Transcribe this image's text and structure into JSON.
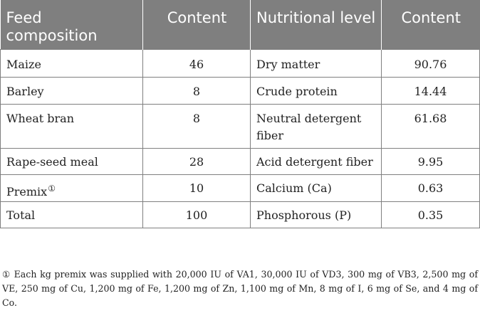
{
  "table": {
    "headers": [
      "Feed composition",
      "Content",
      "Nutritional level",
      "Content"
    ],
    "rows": [
      [
        "Maize",
        "46",
        "Dry matter",
        "90.76"
      ],
      [
        "Barley",
        "8",
        "Crude protein",
        "14.44"
      ],
      [
        "Wheat bran",
        "8",
        "Neutral detergent fiber",
        "61.68"
      ],
      [
        "Rape-seed meal",
        "28",
        "Acid detergent fiber",
        "9.95"
      ],
      [
        "Premix",
        "10",
        "Calcium (Ca)",
        "0.63"
      ],
      [
        "Total",
        "100",
        "Phosphorous (P)",
        "0.35"
      ]
    ],
    "premix_marker": "①",
    "header_bg": "#7f7f7f"
  },
  "footnote": "① Each kg premix was supplied with 20,000 IU of VA1, 30,000 IU of VD3, 300 mg of VB3, 2,500 mg of VE, 250 mg of Cu, 1,200 mg of Fe, 1,200 mg of Zn, 1,100 mg of Mn, 8 mg of I, 6 mg of Se, and 4 mg of Co."
}
